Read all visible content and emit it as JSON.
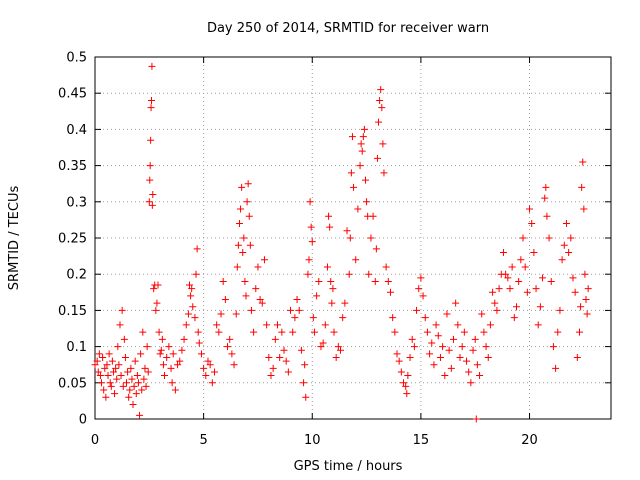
{
  "chart_data": {
    "type": "scatter",
    "title": "Day 250 of 2014, SRMTID for receiver warn",
    "xlabel": "GPS time / hours",
    "ylabel": "SRMTID / TECUs",
    "xlim": [
      0,
      23.75
    ],
    "ylim": [
      0,
      0.5
    ],
    "xticks": [
      0,
      5,
      10,
      15,
      20
    ],
    "xtick_labels": [
      "0",
      "5",
      "10",
      "15",
      "20"
    ],
    "yticks": [
      0,
      0.05,
      0.1,
      0.15,
      0.2,
      0.25,
      0.3,
      0.35,
      0.4,
      0.45,
      0.5
    ],
    "ytick_labels": [
      "0",
      "0.05",
      "0.1",
      "0.15",
      "0.2",
      "0.25",
      "0.3",
      "0.35",
      "0.4",
      "0.45",
      "0.5"
    ],
    "grid": true,
    "marker": "+",
    "color": "#ff0000",
    "series": [
      {
        "name": "SRMTID",
        "points": [
          [
            0.0,
            0.075
          ],
          [
            0.1,
            0.08
          ],
          [
            0.15,
            0.065
          ],
          [
            0.2,
            0.09
          ],
          [
            0.25,
            0.06
          ],
          [
            0.3,
            0.05
          ],
          [
            0.35,
            0.085
          ],
          [
            0.4,
            0.04
          ],
          [
            0.45,
            0.07
          ],
          [
            0.5,
            0.03
          ],
          [
            0.55,
            0.075
          ],
          [
            0.6,
            0.06
          ],
          [
            0.65,
            0.09
          ],
          [
            0.7,
            0.05
          ],
          [
            0.75,
            0.045
          ],
          [
            0.8,
            0.08
          ],
          [
            0.85,
            0.065
          ],
          [
            0.9,
            0.035
          ],
          [
            0.95,
            0.07
          ],
          [
            1.0,
            0.055
          ],
          [
            1.05,
            0.1
          ],
          [
            1.1,
            0.075
          ],
          [
            1.15,
            0.13
          ],
          [
            1.2,
            0.06
          ],
          [
            1.25,
            0.15
          ],
          [
            1.3,
            0.045
          ],
          [
            1.35,
            0.11
          ],
          [
            1.4,
            0.085
          ],
          [
            1.45,
            0.05
          ],
          [
            1.5,
            0.065
          ],
          [
            1.55,
            0.03
          ],
          [
            1.6,
            0.04
          ],
          [
            1.65,
            0.07
          ],
          [
            1.7,
            0.055
          ],
          [
            1.75,
            0.02
          ],
          [
            1.8,
            0.045
          ],
          [
            1.85,
            0.08
          ],
          [
            1.9,
            0.035
          ],
          [
            1.95,
            0.06
          ],
          [
            2.0,
            0.05
          ],
          [
            2.05,
            0.005
          ],
          [
            2.1,
            0.09
          ],
          [
            2.15,
            0.04
          ],
          [
            2.2,
            0.12
          ],
          [
            2.25,
            0.055
          ],
          [
            2.3,
            0.07
          ],
          [
            2.35,
            0.045
          ],
          [
            2.4,
            0.1
          ],
          [
            2.45,
            0.065
          ],
          [
            2.5,
            0.3
          ],
          [
            2.52,
            0.33
          ],
          [
            2.54,
            0.35
          ],
          [
            2.56,
            0.385
          ],
          [
            2.58,
            0.43
          ],
          [
            2.6,
            0.44
          ],
          [
            2.62,
            0.487
          ],
          [
            2.64,
            0.295
          ],
          [
            2.66,
            0.31
          ],
          [
            2.7,
            0.18
          ],
          [
            2.75,
            0.185
          ],
          [
            2.8,
            0.15
          ],
          [
            2.85,
            0.16
          ],
          [
            2.9,
            0.185
          ],
          [
            2.95,
            0.12
          ],
          [
            3.0,
            0.09
          ],
          [
            3.05,
            0.095
          ],
          [
            3.1,
            0.11
          ],
          [
            3.15,
            0.075
          ],
          [
            3.2,
            0.06
          ],
          [
            3.3,
            0.085
          ],
          [
            3.4,
            0.1
          ],
          [
            3.5,
            0.07
          ],
          [
            3.55,
            0.05
          ],
          [
            3.6,
            0.09
          ],
          [
            3.7,
            0.04
          ],
          [
            3.8,
            0.075
          ],
          [
            3.9,
            0.08
          ],
          [
            4.0,
            0.095
          ],
          [
            4.1,
            0.11
          ],
          [
            4.2,
            0.13
          ],
          [
            4.3,
            0.145
          ],
          [
            4.35,
            0.185
          ],
          [
            4.4,
            0.17
          ],
          [
            4.45,
            0.18
          ],
          [
            4.5,
            0.155
          ],
          [
            4.6,
            0.14
          ],
          [
            4.65,
            0.2
          ],
          [
            4.7,
            0.235
          ],
          [
            4.75,
            0.12
          ],
          [
            4.8,
            0.105
          ],
          [
            4.9,
            0.09
          ],
          [
            5.0,
            0.07
          ],
          [
            5.1,
            0.06
          ],
          [
            5.2,
            0.08
          ],
          [
            5.3,
            0.075
          ],
          [
            5.4,
            0.05
          ],
          [
            5.5,
            0.065
          ],
          [
            5.6,
            0.13
          ],
          [
            5.7,
            0.12
          ],
          [
            5.8,
            0.145
          ],
          [
            5.9,
            0.19
          ],
          [
            6.0,
            0.165
          ],
          [
            6.1,
            0.1
          ],
          [
            6.2,
            0.11
          ],
          [
            6.3,
            0.09
          ],
          [
            6.4,
            0.075
          ],
          [
            6.5,
            0.145
          ],
          [
            6.55,
            0.21
          ],
          [
            6.6,
            0.24
          ],
          [
            6.65,
            0.27
          ],
          [
            6.7,
            0.29
          ],
          [
            6.75,
            0.32
          ],
          [
            6.8,
            0.23
          ],
          [
            6.85,
            0.25
          ],
          [
            6.9,
            0.19
          ],
          [
            6.95,
            0.17
          ],
          [
            7.0,
            0.3
          ],
          [
            7.05,
            0.325
          ],
          [
            7.1,
            0.28
          ],
          [
            7.15,
            0.24
          ],
          [
            7.2,
            0.15
          ],
          [
            7.3,
            0.12
          ],
          [
            7.4,
            0.18
          ],
          [
            7.5,
            0.21
          ],
          [
            7.6,
            0.165
          ],
          [
            7.7,
            0.16
          ],
          [
            7.8,
            0.22
          ],
          [
            7.9,
            0.13
          ],
          [
            8.0,
            0.085
          ],
          [
            8.1,
            0.06
          ],
          [
            8.2,
            0.07
          ],
          [
            8.3,
            0.11
          ],
          [
            8.4,
            0.13
          ],
          [
            8.5,
            0.085
          ],
          [
            8.6,
            0.12
          ],
          [
            8.7,
            0.095
          ],
          [
            8.8,
            0.08
          ],
          [
            8.9,
            0.065
          ],
          [
            9.0,
            0.15
          ],
          [
            9.1,
            0.12
          ],
          [
            9.2,
            0.14
          ],
          [
            9.3,
            0.165
          ],
          [
            9.4,
            0.15
          ],
          [
            9.5,
            0.095
          ],
          [
            9.6,
            0.05
          ],
          [
            9.65,
            0.075
          ],
          [
            9.7,
            0.03
          ],
          [
            9.8,
            0.2
          ],
          [
            9.85,
            0.22
          ],
          [
            9.9,
            0.3
          ],
          [
            9.95,
            0.265
          ],
          [
            10.0,
            0.245
          ],
          [
            10.05,
            0.14
          ],
          [
            10.1,
            0.12
          ],
          [
            10.2,
            0.17
          ],
          [
            10.3,
            0.19
          ],
          [
            10.4,
            0.1
          ],
          [
            10.5,
            0.105
          ],
          [
            10.6,
            0.13
          ],
          [
            10.7,
            0.21
          ],
          [
            10.75,
            0.28
          ],
          [
            10.8,
            0.265
          ],
          [
            10.85,
            0.19
          ],
          [
            10.9,
            0.16
          ],
          [
            10.95,
            0.18
          ],
          [
            11.0,
            0.12
          ],
          [
            11.1,
            0.085
          ],
          [
            11.2,
            0.1
          ],
          [
            11.3,
            0.095
          ],
          [
            11.4,
            0.14
          ],
          [
            11.5,
            0.16
          ],
          [
            11.6,
            0.26
          ],
          [
            11.7,
            0.2
          ],
          [
            11.75,
            0.25
          ],
          [
            11.8,
            0.34
          ],
          [
            11.85,
            0.39
          ],
          [
            11.9,
            0.32
          ],
          [
            12.0,
            0.22
          ],
          [
            12.1,
            0.29
          ],
          [
            12.2,
            0.35
          ],
          [
            12.25,
            0.38
          ],
          [
            12.3,
            0.37
          ],
          [
            12.35,
            0.39
          ],
          [
            12.4,
            0.4
          ],
          [
            12.45,
            0.33
          ],
          [
            12.5,
            0.3
          ],
          [
            12.55,
            0.28
          ],
          [
            12.6,
            0.2
          ],
          [
            12.7,
            0.25
          ],
          [
            12.8,
            0.28
          ],
          [
            12.9,
            0.19
          ],
          [
            12.95,
            0.235
          ],
          [
            13.0,
            0.36
          ],
          [
            13.05,
            0.41
          ],
          [
            13.1,
            0.44
          ],
          [
            13.15,
            0.455
          ],
          [
            13.2,
            0.43
          ],
          [
            13.25,
            0.38
          ],
          [
            13.3,
            0.34
          ],
          [
            13.4,
            0.21
          ],
          [
            13.5,
            0.19
          ],
          [
            13.6,
            0.175
          ],
          [
            13.7,
            0.14
          ],
          [
            13.8,
            0.12
          ],
          [
            13.9,
            0.09
          ],
          [
            14.0,
            0.08
          ],
          [
            14.1,
            0.065
          ],
          [
            14.2,
            0.05
          ],
          [
            14.3,
            0.045
          ],
          [
            14.35,
            0.035
          ],
          [
            14.4,
            0.06
          ],
          [
            14.5,
            0.085
          ],
          [
            14.6,
            0.11
          ],
          [
            14.7,
            0.1
          ],
          [
            14.8,
            0.15
          ],
          [
            14.9,
            0.18
          ],
          [
            15.0,
            0.195
          ],
          [
            15.1,
            0.17
          ],
          [
            15.2,
            0.14
          ],
          [
            15.3,
            0.12
          ],
          [
            15.4,
            0.09
          ],
          [
            15.5,
            0.105
          ],
          [
            15.6,
            0.075
          ],
          [
            15.7,
            0.13
          ],
          [
            15.8,
            0.115
          ],
          [
            15.9,
            0.085
          ],
          [
            16.0,
            0.1
          ],
          [
            16.1,
            0.06
          ],
          [
            16.2,
            0.145
          ],
          [
            16.3,
            0.095
          ],
          [
            16.4,
            0.07
          ],
          [
            16.5,
            0.11
          ],
          [
            16.6,
            0.16
          ],
          [
            16.7,
            0.13
          ],
          [
            16.8,
            0.085
          ],
          [
            16.9,
            0.1
          ],
          [
            17.0,
            0.12
          ],
          [
            17.1,
            0.08
          ],
          [
            17.2,
            0.065
          ],
          [
            17.3,
            0.05
          ],
          [
            17.4,
            0.095
          ],
          [
            17.5,
            0.11
          ],
          [
            17.55,
            0.0
          ],
          [
            17.6,
            0.075
          ],
          [
            17.7,
            0.06
          ],
          [
            17.8,
            0.145
          ],
          [
            17.9,
            0.12
          ],
          [
            18.0,
            0.1
          ],
          [
            18.1,
            0.085
          ],
          [
            18.2,
            0.13
          ],
          [
            18.3,
            0.175
          ],
          [
            18.4,
            0.16
          ],
          [
            18.5,
            0.15
          ],
          [
            18.6,
            0.18
          ],
          [
            18.7,
            0.2
          ],
          [
            18.8,
            0.23
          ],
          [
            18.9,
            0.2
          ],
          [
            19.0,
            0.195
          ],
          [
            19.1,
            0.18
          ],
          [
            19.2,
            0.21
          ],
          [
            19.3,
            0.14
          ],
          [
            19.4,
            0.155
          ],
          [
            19.5,
            0.19
          ],
          [
            19.6,
            0.22
          ],
          [
            19.7,
            0.25
          ],
          [
            19.8,
            0.21
          ],
          [
            19.9,
            0.175
          ],
          [
            20.0,
            0.29
          ],
          [
            20.1,
            0.27
          ],
          [
            20.2,
            0.23
          ],
          [
            20.3,
            0.18
          ],
          [
            20.4,
            0.13
          ],
          [
            20.5,
            0.155
          ],
          [
            20.6,
            0.195
          ],
          [
            20.7,
            0.305
          ],
          [
            20.75,
            0.32
          ],
          [
            20.8,
            0.28
          ],
          [
            20.9,
            0.25
          ],
          [
            21.0,
            0.19
          ],
          [
            21.1,
            0.1
          ],
          [
            21.2,
            0.07
          ],
          [
            21.3,
            0.12
          ],
          [
            21.4,
            0.15
          ],
          [
            21.5,
            0.22
          ],
          [
            21.6,
            0.24
          ],
          [
            21.7,
            0.27
          ],
          [
            21.8,
            0.23
          ],
          [
            21.9,
            0.25
          ],
          [
            22.0,
            0.195
          ],
          [
            22.1,
            0.175
          ],
          [
            22.2,
            0.085
          ],
          [
            22.3,
            0.12
          ],
          [
            22.35,
            0.155
          ],
          [
            22.4,
            0.32
          ],
          [
            22.45,
            0.355
          ],
          [
            22.5,
            0.29
          ],
          [
            22.55,
            0.2
          ],
          [
            22.6,
            0.165
          ],
          [
            22.65,
            0.145
          ],
          [
            22.7,
            0.18
          ]
        ]
      }
    ]
  }
}
